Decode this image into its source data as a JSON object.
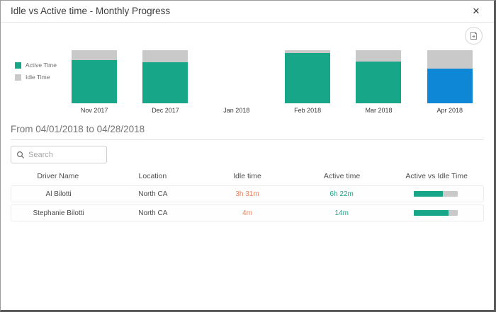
{
  "modal": {
    "title": "Idle vs Active time - Monthly Progress",
    "close_glyph": "✕"
  },
  "chart_data": {
    "type": "bar",
    "stacked": true,
    "categories": [
      "Nov 2017",
      "Dec 2017",
      "Jan 2018",
      "Feb 2018",
      "Mar 2018",
      "Apr 2018"
    ],
    "series": [
      {
        "name": "Active Time",
        "values_pct": [
          81,
          77,
          0,
          95,
          79,
          65
        ]
      },
      {
        "name": "Idle Time",
        "values_pct": [
          19,
          23,
          0,
          5,
          21,
          35
        ]
      }
    ],
    "has_data": [
      true,
      true,
      false,
      true,
      true,
      true
    ],
    "selected_month": "Apr 2018",
    "legend": [
      "Active Time",
      "Idle Time"
    ],
    "legend_position": "left",
    "ylim": [
      0,
      100
    ],
    "title": "",
    "xlabel": "",
    "ylabel": ""
  },
  "colors": {
    "active": "#18a689",
    "idle": "#c9c9c9",
    "selected_active": "#0e87d6",
    "idle_text": "#e87e58",
    "active_text": "#18a689"
  },
  "filter": {
    "date_range": "From 04/01/2018 to 04/28/2018"
  },
  "search": {
    "placeholder": "Search"
  },
  "table": {
    "columns": [
      "Driver Name",
      "Location",
      "Idle time",
      "Active time",
      "Active vs Idle Time"
    ],
    "rows": [
      {
        "driver": "Al Bilotti",
        "location": "North CA",
        "idle": "3h 31m",
        "active": "6h 22m",
        "active_pct": 65
      },
      {
        "driver": "Stephanie Bilotti",
        "location": "North CA",
        "idle": "4m",
        "active": "14m",
        "active_pct": 78
      }
    ]
  }
}
